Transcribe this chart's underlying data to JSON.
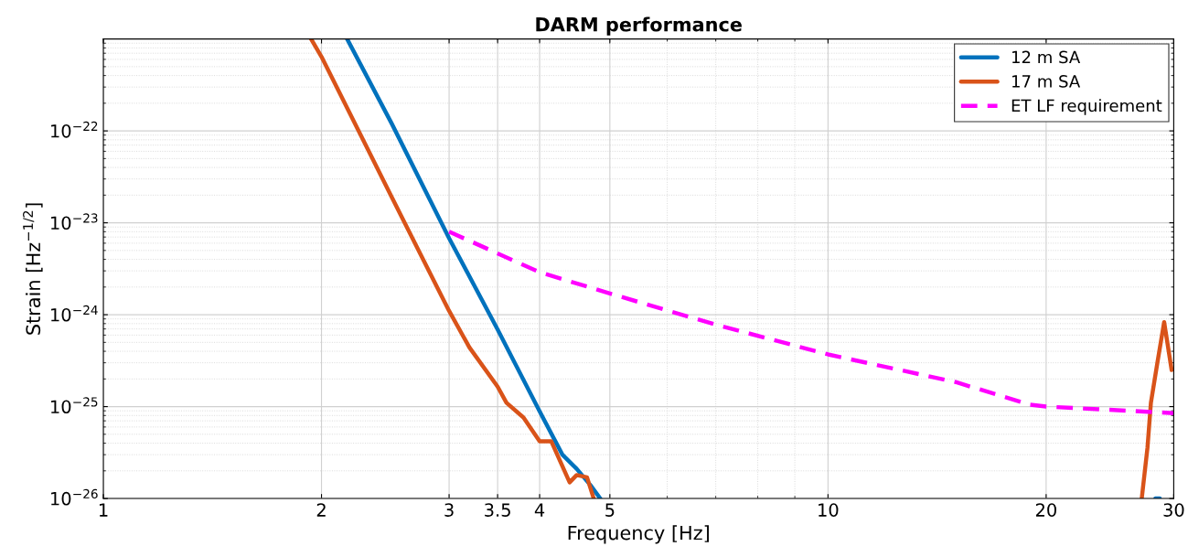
{
  "chart_data": {
    "type": "line",
    "title": "DARM performance",
    "xlabel": "Frequency [Hz]",
    "ylabel": "Strain [Hz$^{−1/2}$]",
    "log": "xy",
    "xlim": [
      1,
      30
    ],
    "ylim": [
      1e-26,
      1e-21
    ],
    "xticks": [
      1,
      2,
      3,
      3.5,
      4,
      5,
      10,
      20,
      30
    ],
    "yticks": [
      {
        "value": 1e-26,
        "label": "10$^{−26}$"
      },
      {
        "value": 1e-25,
        "label": "10$^{−25}$"
      },
      {
        "value": 1e-24,
        "label": "10$^{−24}$"
      },
      {
        "value": 1e-23,
        "label": "10$^{−23}$"
      },
      {
        "value": 1e-22,
        "label": "10$^{−22}$"
      }
    ],
    "grid": true,
    "legend": "top right",
    "line_style": "solid",
    "marker": "none",
    "series": [
      {
        "name": "12 m SA",
        "color": "#0072bd",
        "x": [
          2.17,
          2.5,
          3,
          3.5,
          4,
          4.3,
          4.5,
          4.7,
          4.85,
          10,
          28.3,
          28.7
        ],
        "values": [
          1e-21,
          1.2e-22,
          6.8e-24,
          6.9e-25,
          8.9e-26,
          3e-26,
          2.1e-26,
          1.4e-26,
          1e-26,
          null,
          1e-26,
          1e-26
        ]
      },
      {
        "name": "17 m SA",
        "color": "#d95319",
        "x": [
          1.935,
          2,
          2.5,
          3,
          3.2,
          3.5,
          3.6,
          3.8,
          4,
          4.15,
          4.4,
          4.5,
          4.65,
          4.75,
          10,
          27.1,
          27.6,
          27.9,
          28.5,
          29.1,
          29.8
        ],
        "values": [
          1e-21,
          6.4e-22,
          1.9e-23,
          1.1e-24,
          4.4e-25,
          1.65e-25,
          1.1e-25,
          7.6e-26,
          4.2e-26,
          4.2e-26,
          1.5e-26,
          1.8e-26,
          1.7e-26,
          1e-26,
          null,
          1e-26,
          3.6e-26,
          1.1e-25,
          3.1e-25,
          8.3e-25,
          2.5e-25
        ]
      },
      {
        "name": "ET LF requirement",
        "color": "#ff00ff",
        "line_style": "dashed",
        "x": [
          3,
          4,
          5,
          7,
          10,
          15,
          19,
          20,
          30
        ],
        "values": [
          8e-24,
          2.9e-24,
          1.7e-24,
          7.8e-25,
          3.7e-25,
          1.85e-25,
          1.05e-25,
          1e-25,
          8.5e-26
        ]
      }
    ]
  }
}
